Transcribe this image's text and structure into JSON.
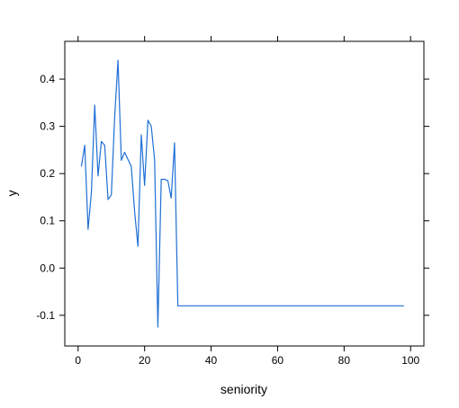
{
  "chart_data": {
    "type": "line",
    "xlabel": "seniority",
    "ylabel": "y",
    "xlim": [
      -4,
      104
    ],
    "ylim": [
      -0.165,
      0.48
    ],
    "x_ticks": [
      0,
      20,
      40,
      60,
      80,
      100
    ],
    "y_ticks": [
      -0.1,
      0.0,
      0.1,
      0.2,
      0.3,
      0.4
    ],
    "x_tick_labels": [
      "0",
      "20",
      "40",
      "60",
      "80",
      "100"
    ],
    "y_tick_labels": [
      "-0.1",
      "0.0",
      "0.1",
      "0.2",
      "0.3",
      "0.4"
    ],
    "grid": false,
    "series": [
      {
        "color": "#1f6fd6",
        "x": [
          1,
          2,
          3,
          4,
          5,
          6,
          7,
          8,
          9,
          10,
          11,
          12,
          13,
          14,
          15,
          16,
          17,
          18,
          19,
          20,
          21,
          22,
          23,
          24,
          25,
          26,
          27,
          28,
          29,
          30,
          98
        ],
        "y": [
          0.215,
          0.26,
          0.082,
          0.16,
          0.345,
          0.195,
          0.268,
          0.26,
          0.145,
          0.155,
          0.32,
          0.44,
          0.228,
          0.245,
          0.23,
          0.215,
          0.12,
          0.046,
          0.282,
          0.175,
          0.313,
          0.3,
          0.23,
          -0.125,
          0.188,
          0.188,
          0.185,
          0.148,
          0.265,
          -0.08,
          -0.08
        ]
      }
    ]
  }
}
